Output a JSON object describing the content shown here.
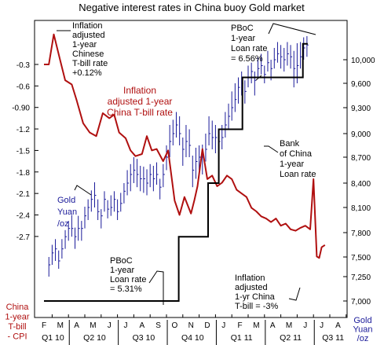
{
  "chart_data": {
    "type": "line",
    "title": "Negative interest rates in China buoy Gold market",
    "left_axis": {
      "title_lines": [
        "China",
        "1-year",
        "T-bill",
        "- CPI"
      ],
      "ticks": [
        -0.3,
        -0.6,
        -0.9,
        -1.2,
        -1.5,
        -1.8,
        -2.1,
        -2.4,
        -2.7
      ],
      "tick_labels": [
        "-0.3",
        "-0.6",
        "-0.90",
        "-1.2",
        "-1.5",
        "-1.8",
        "-2.1",
        "-2.4",
        "-2.7"
      ],
      "ylim": [
        -3.0,
        0.0
      ]
    },
    "right_axis": {
      "title_lines": [
        "Gold",
        "Yuan",
        "/oz"
      ],
      "ticks": [
        7000,
        7250,
        7500,
        7800,
        8100,
        8400,
        8700,
        9000,
        9300,
        9600,
        10000
      ],
      "tick_labels": [
        "7,000",
        "7,250",
        "7,500",
        "7,800",
        "8,100",
        "8,400",
        "8,700",
        "9,000",
        "9,300",
        "9,600",
        "10,000"
      ]
    },
    "x_axis": {
      "months": [
        "F",
        "M",
        "A",
        "M",
        "J",
        "J",
        "A",
        "S",
        "O",
        "N",
        "D",
        "J",
        "F",
        "M",
        "A",
        "M",
        "J",
        "J",
        "A"
      ],
      "quarters": [
        "Q1 10",
        "Q2 10",
        "Q3 10",
        "Q4 10",
        "Q1 11",
        "Q2 11",
        "Q3 11"
      ]
    },
    "series": [
      {
        "axis": "left",
        "color": "#b01010",
        "x": [
          0,
          0.3,
          0.6,
          1.0,
          1.3,
          1.7,
          2.0,
          2.4,
          2.8,
          3.2,
          3.6,
          4.0,
          4.3,
          4.6,
          5.0,
          5.3,
          5.6,
          6.0,
          6.3,
          6.6,
          6.9,
          7.3,
          7.6,
          8.0,
          8.3,
          8.6,
          9.0,
          9.2,
          9.4,
          9.7,
          10.0,
          10.3,
          10.6,
          10.9,
          11.2,
          11.5,
          11.8,
          12.1,
          12.4,
          12.7,
          13.0,
          13.3,
          13.6,
          13.9,
          14.2,
          14.5,
          14.8,
          15.1,
          15.4,
          15.7,
          16.0,
          16.3,
          16.5,
          16.7,
          16.85,
          17.0,
          17.2
        ],
        "values": [
          -0.3,
          -0.3,
          0.12,
          -0.25,
          -0.52,
          -0.58,
          -0.8,
          -1.12,
          -1.25,
          -1.3,
          -0.98,
          -1.05,
          -1.0,
          -1.25,
          -1.33,
          -1.5,
          -1.58,
          -1.55,
          -1.3,
          -1.5,
          -1.48,
          -1.65,
          -1.5,
          -2.2,
          -2.4,
          -2.15,
          -2.38,
          -2.2,
          -2.0,
          -1.48,
          -1.9,
          -1.85,
          -2.0,
          -1.95,
          -1.85,
          -1.9,
          -2.05,
          -2.1,
          -2.15,
          -2.3,
          -2.35,
          -2.42,
          -2.45,
          -2.5,
          -2.45,
          -2.55,
          -2.52,
          -2.6,
          -2.62,
          -2.58,
          -2.55,
          -2.6,
          -1.9,
          -2.98,
          -3.0,
          -2.85,
          -2.82
        ]
      },
      {
        "axis": "right",
        "color": "#000000",
        "steps": [
          {
            "x": 0,
            "value": 7000
          },
          {
            "x": 8.25,
            "value": 7000
          },
          {
            "x": 8.25,
            "value": 7750
          },
          {
            "x": 10.05,
            "value": 7750
          },
          {
            "x": 10.05,
            "value": 8400
          },
          {
            "x": 10.7,
            "value": 8400
          },
          {
            "x": 10.7,
            "value": 9050
          },
          {
            "x": 12.15,
            "value": 9050
          },
          {
            "x": 12.15,
            "value": 9700
          },
          {
            "x": 15.85,
            "value": 9700
          },
          {
            "x": 15.85,
            "value": 10270
          },
          {
            "x": 16.15,
            "value": 10270
          }
        ]
      },
      {
        "axis": "right",
        "type": "hlc",
        "color": "#1a1a99",
        "x": [
          0.3,
          0.5,
          0.7,
          0.9,
          1.1,
          1.3,
          1.5,
          1.7,
          1.9,
          2.1,
          2.3,
          2.5,
          2.7,
          2.9,
          3.1,
          3.3,
          3.5,
          3.7,
          3.9,
          4.1,
          4.3,
          4.5,
          4.7,
          4.9,
          5.1,
          5.3,
          5.5,
          5.7,
          5.9,
          6.1,
          6.3,
          6.5,
          6.7,
          6.9,
          7.1,
          7.3,
          7.5,
          7.7,
          7.9,
          8.1,
          8.3,
          8.5,
          8.7,
          8.9,
          9.1,
          9.3,
          9.5,
          9.7,
          9.9,
          10.1,
          10.3,
          10.5,
          10.7,
          10.9,
          11.1,
          11.3,
          11.5,
          11.7,
          11.9,
          12.1,
          12.3,
          12.5,
          12.7,
          12.9,
          13.1,
          13.3,
          13.5,
          13.7,
          13.9,
          14.1,
          14.3,
          14.5,
          14.7,
          14.9,
          15.1,
          15.3,
          15.5,
          15.7,
          15.9,
          16.1
        ],
        "high": [
          7500,
          7650,
          7720,
          7580,
          7720,
          7830,
          7940,
          8010,
          7860,
          8000,
          7940,
          8110,
          8200,
          8310,
          8410,
          8200,
          8080,
          8300,
          8190,
          8250,
          8300,
          8200,
          8280,
          8400,
          8550,
          8620,
          8700,
          8680,
          8600,
          8590,
          8560,
          8620,
          8600,
          8640,
          8450,
          8620,
          8850,
          9100,
          9160,
          9250,
          9200,
          8950,
          9100,
          9050,
          8720,
          8820,
          8850,
          8860,
          9000,
          9200,
          9150,
          9100,
          9050,
          9100,
          9250,
          9350,
          9500,
          9600,
          9700,
          9800,
          9650,
          9900,
          9950,
          9800,
          10050,
          10100,
          9900,
          10150,
          10000,
          10200,
          10300,
          10250,
          10200,
          10300,
          10250,
          10150,
          10280,
          10300,
          10380,
          10400
        ],
        "low": [
          7250,
          7400,
          7450,
          7350,
          7480,
          7600,
          7700,
          7750,
          7600,
          7700,
          7700,
          7850,
          7950,
          8050,
          8100,
          7950,
          7850,
          8050,
          7970,
          8000,
          8050,
          7950,
          8050,
          8150,
          8250,
          8300,
          8400,
          8350,
          8300,
          8280,
          8250,
          8350,
          8300,
          8380,
          8200,
          8350,
          8550,
          8700,
          8850,
          8950,
          8850,
          8600,
          8700,
          8700,
          8350,
          8450,
          8550,
          8500,
          8650,
          8850,
          8800,
          8750,
          8750,
          8800,
          8950,
          9050,
          9150,
          9250,
          9350,
          9450,
          9350,
          9550,
          9600,
          9450,
          9700,
          9750,
          9600,
          9800,
          9650,
          9850,
          9950,
          9850,
          9800,
          9900,
          9850,
          9550,
          9600,
          9850,
          10000,
          10050
        ],
        "close": [
          7400,
          7550,
          7600,
          7450,
          7600,
          7750,
          7850,
          7850,
          7750,
          7850,
          7850,
          8000,
          8100,
          8200,
          8250,
          8050,
          8000,
          8200,
          8080,
          8100,
          8200,
          8050,
          8150,
          8300,
          8400,
          8500,
          8550,
          8500,
          8450,
          8450,
          8400,
          8500,
          8450,
          8500,
          8350,
          8500,
          8700,
          8900,
          9000,
          9100,
          9000,
          8800,
          8900,
          8850,
          8550,
          8650,
          8700,
          8700,
          8800,
          9000,
          8950,
          8950,
          8900,
          8950,
          9100,
          9200,
          9300,
          9400,
          9550,
          9600,
          9500,
          9700,
          9800,
          9650,
          9850,
          9900,
          9750,
          9950,
          9850,
          10000,
          10100,
          10050,
          10000,
          10100,
          10050,
          9850,
          9900,
          10050,
          10200,
          10250
        ]
      }
    ],
    "annotations": [
      {
        "lines": [
          "Inflation",
          "adjusted",
          "1-year",
          "Chinese",
          "T-bill rate",
          "+0.12%"
        ],
        "color": "#000000"
      },
      {
        "lines": [
          "Inflation",
          "adjusted 1-year",
          "China T-bill rate"
        ],
        "color": "#b01010"
      },
      {
        "lines": [
          "Gold",
          "Yuan",
          "/oz"
        ],
        "color": "#1a1a99"
      },
      {
        "lines": [
          "PBoC",
          "1-year",
          "Loan rate",
          "= 6.56%"
        ],
        "color": "#000000"
      },
      {
        "lines": [
          "Bank",
          "of China",
          "1-year",
          "Loan rate"
        ],
        "color": "#000000"
      },
      {
        "lines": [
          "PBoC",
          "1-year",
          "Loan rate",
          "= 5.31%"
        ],
        "color": "#000000"
      },
      {
        "lines": [
          "Inflation",
          "adjusted",
          "1-yr China",
          "T-bill = -3%"
        ],
        "color": "#000000"
      }
    ]
  }
}
